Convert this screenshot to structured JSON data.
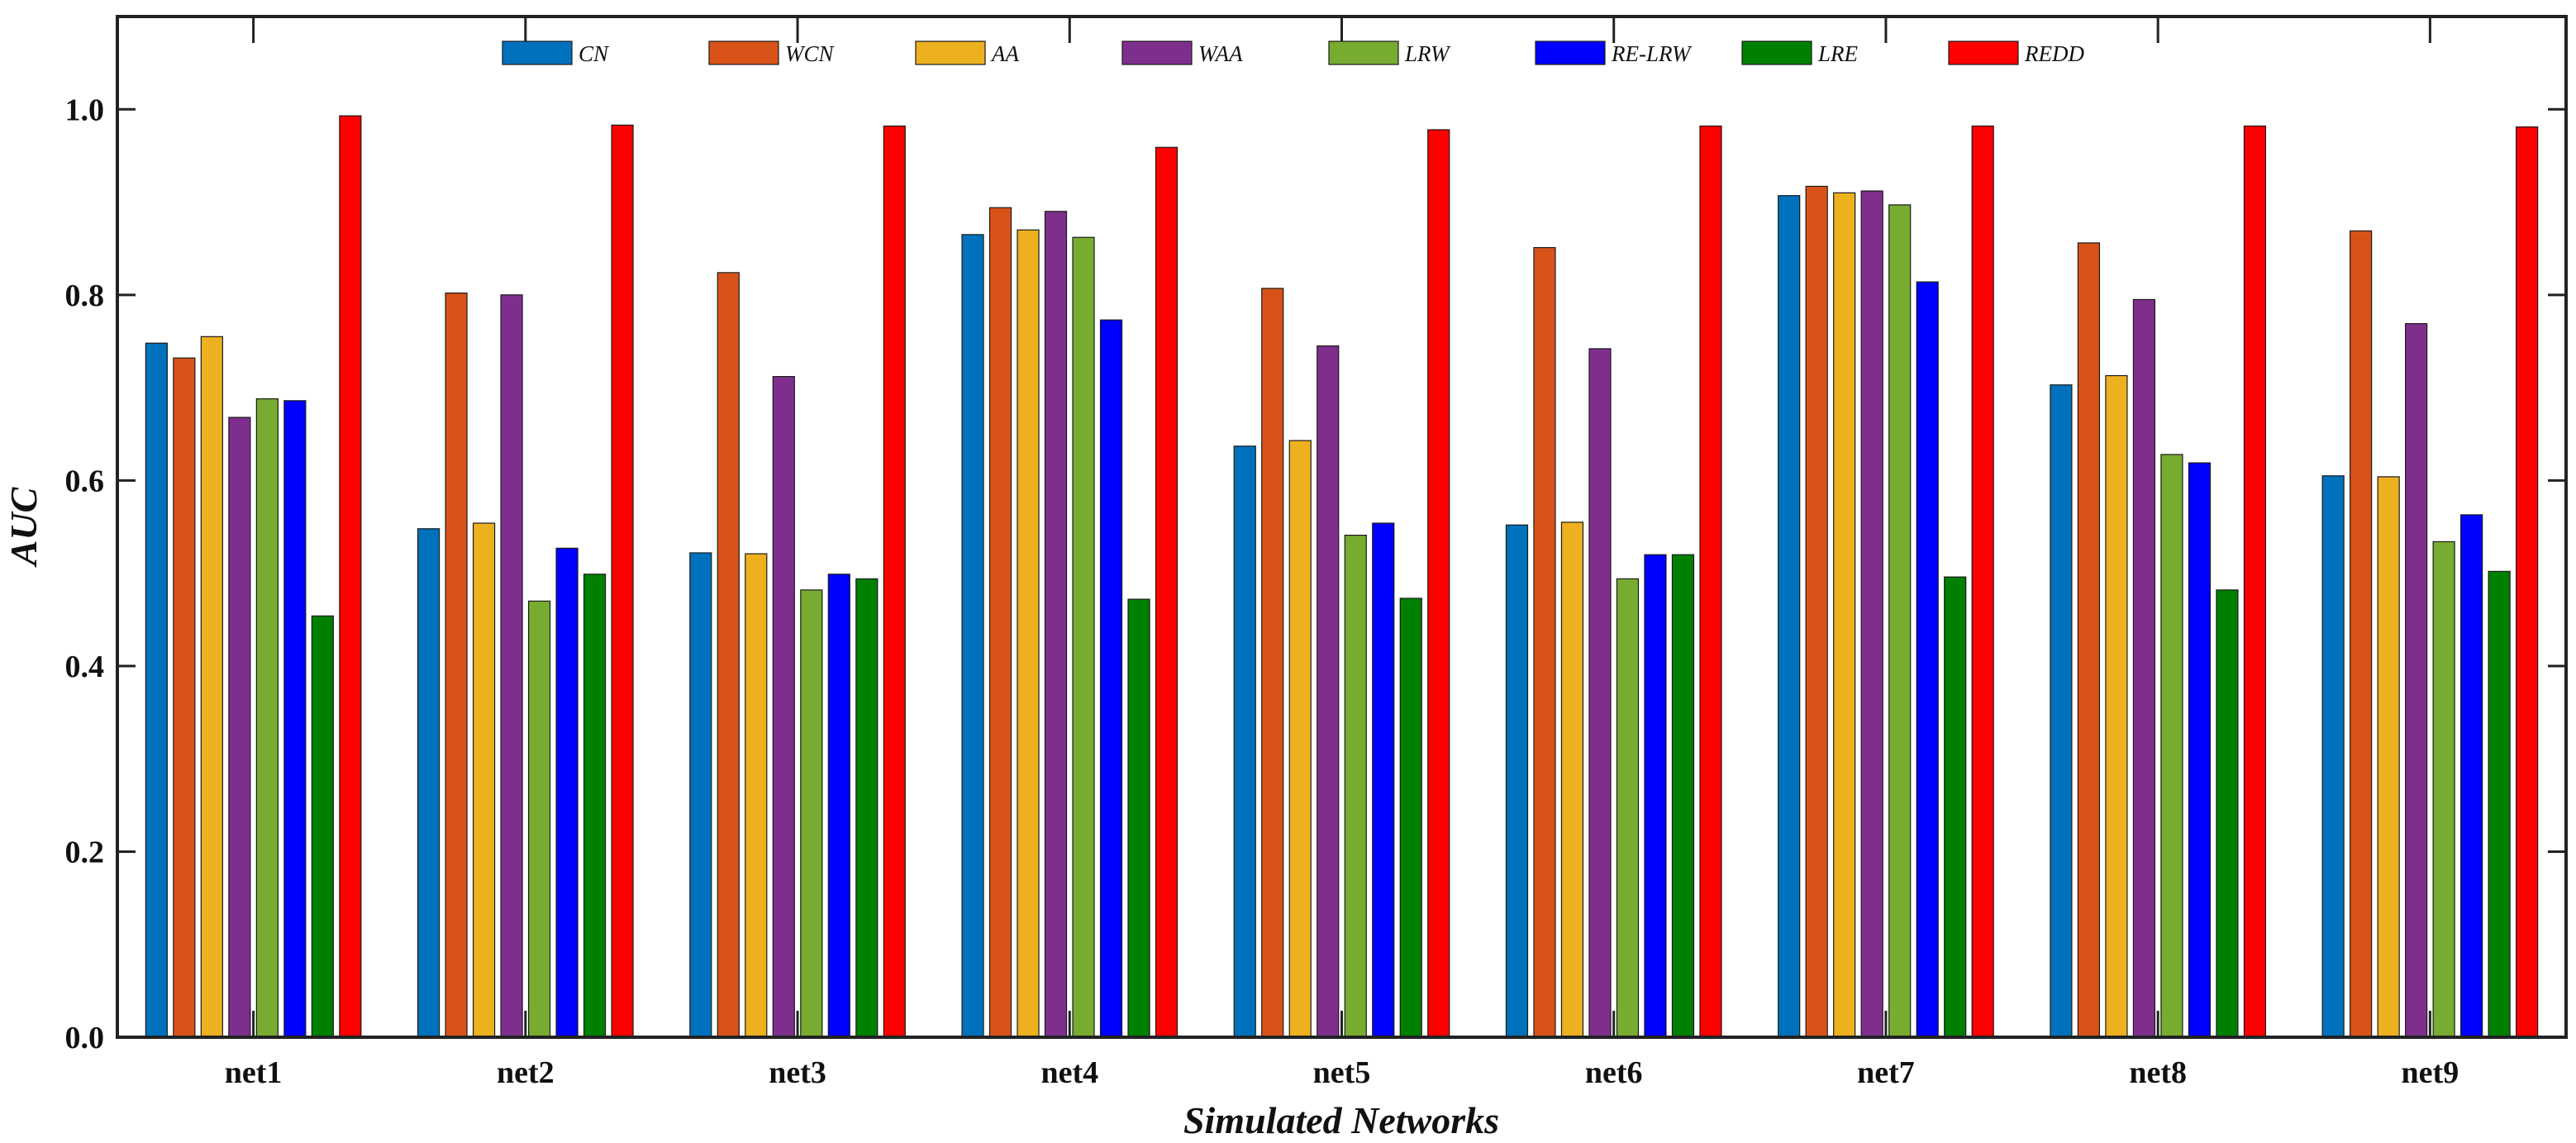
{
  "chart_data": {
    "type": "bar",
    "title": "",
    "xlabel": "Simulated Networks",
    "ylabel": "AUC",
    "ylim": [
      0,
      1.1
    ],
    "yticks": [
      "0.0",
      "0.2",
      "0.4",
      "0.6",
      "0.8",
      "1.0"
    ],
    "ytick_values": [
      0,
      0.2,
      0.4,
      0.6,
      0.8,
      1.0
    ],
    "legend_position": "top",
    "categories": [
      "net1",
      "net2",
      "net3",
      "net4",
      "net5",
      "net6",
      "net7",
      "net8",
      "net9"
    ],
    "series": [
      {
        "name": "CN",
        "color": "#0072BD",
        "values": [
          0.748,
          0.548,
          0.522,
          0.865,
          0.637,
          0.552,
          0.907,
          0.703,
          0.605
        ]
      },
      {
        "name": "WCN",
        "color": "#D95319",
        "values": [
          0.732,
          0.802,
          0.824,
          0.894,
          0.807,
          0.851,
          0.917,
          0.856,
          0.869
        ]
      },
      {
        "name": "AA",
        "color": "#EDB120",
        "values": [
          0.755,
          0.554,
          0.521,
          0.87,
          0.643,
          0.555,
          0.91,
          0.713,
          0.604
        ]
      },
      {
        "name": "WAA",
        "color": "#7E2F8E",
        "values": [
          0.668,
          0.8,
          0.712,
          0.89,
          0.745,
          0.742,
          0.912,
          0.795,
          0.769
        ]
      },
      {
        "name": "LRW",
        "color": "#77AC30",
        "values": [
          0.688,
          0.47,
          0.482,
          0.862,
          0.541,
          0.494,
          0.897,
          0.628,
          0.534
        ]
      },
      {
        "name": "RE-LRW",
        "color": "#0000FF",
        "values": [
          0.686,
          0.527,
          0.499,
          0.773,
          0.554,
          0.52,
          0.814,
          0.619,
          0.563
        ]
      },
      {
        "name": "LRE",
        "color": "#008000",
        "values": [
          0.454,
          0.499,
          0.494,
          0.472,
          0.473,
          0.52,
          0.496,
          0.482,
          0.502
        ]
      },
      {
        "name": "REDD",
        "color": "#FF0000",
        "values": [
          0.993,
          0.983,
          0.982,
          0.959,
          0.978,
          0.982,
          0.982,
          0.982,
          0.981
        ]
      }
    ]
  }
}
